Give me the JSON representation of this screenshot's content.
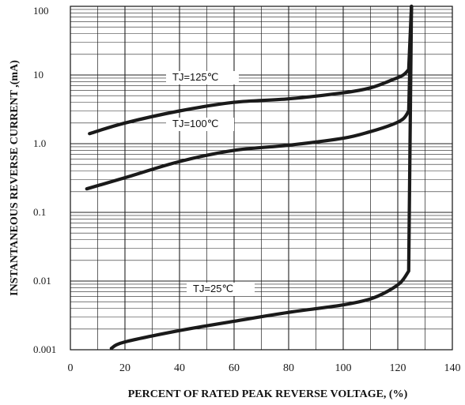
{
  "chart_data": {
    "type": "line",
    "xlabel": "PERCENT OF RATED PEAK REVERSE VOLTAGE, (%)",
    "ylabel": "INSTANTANEOUS REVERSE CURRENT ,(mA)",
    "xlim": [
      0,
      140
    ],
    "ylim": [
      0.001,
      100
    ],
    "yscale": "log",
    "x_ticks": [
      "0",
      "20",
      "40",
      "60",
      "80",
      "100",
      "120",
      "140"
    ],
    "y_ticks": [
      "0.001",
      "0.01",
      "0.1",
      "1.0",
      "10",
      "100"
    ],
    "grid": true,
    "series": [
      {
        "name": "TJ=125℃",
        "label": "TJ=125℃",
        "points": [
          [
            7,
            1.4
          ],
          [
            20,
            2.0
          ],
          [
            40,
            3.0
          ],
          [
            60,
            4.0
          ],
          [
            80,
            4.5
          ],
          [
            100,
            5.5
          ],
          [
            110,
            6.5
          ],
          [
            118,
            8.5
          ],
          [
            122,
            10.0
          ],
          [
            124,
            12.0
          ],
          [
            125,
            100
          ]
        ]
      },
      {
        "name": "TJ=100℃",
        "label": "TJ=100℃",
        "points": [
          [
            6,
            0.22
          ],
          [
            20,
            0.32
          ],
          [
            40,
            0.55
          ],
          [
            60,
            0.8
          ],
          [
            80,
            0.95
          ],
          [
            100,
            1.2
          ],
          [
            110,
            1.5
          ],
          [
            118,
            1.9
          ],
          [
            122,
            2.3
          ],
          [
            124,
            3.0
          ],
          [
            125,
            100
          ]
        ]
      },
      {
        "name": "TJ=25℃",
        "label": "TJ=25℃",
        "points": [
          [
            15,
            0.00105
          ],
          [
            20,
            0.0013
          ],
          [
            40,
            0.0019
          ],
          [
            60,
            0.0026
          ],
          [
            80,
            0.0035
          ],
          [
            100,
            0.0045
          ],
          [
            110,
            0.0055
          ],
          [
            116,
            0.007
          ],
          [
            121,
            0.0095
          ],
          [
            124,
            0.014
          ],
          [
            125,
            100
          ]
        ]
      }
    ]
  }
}
